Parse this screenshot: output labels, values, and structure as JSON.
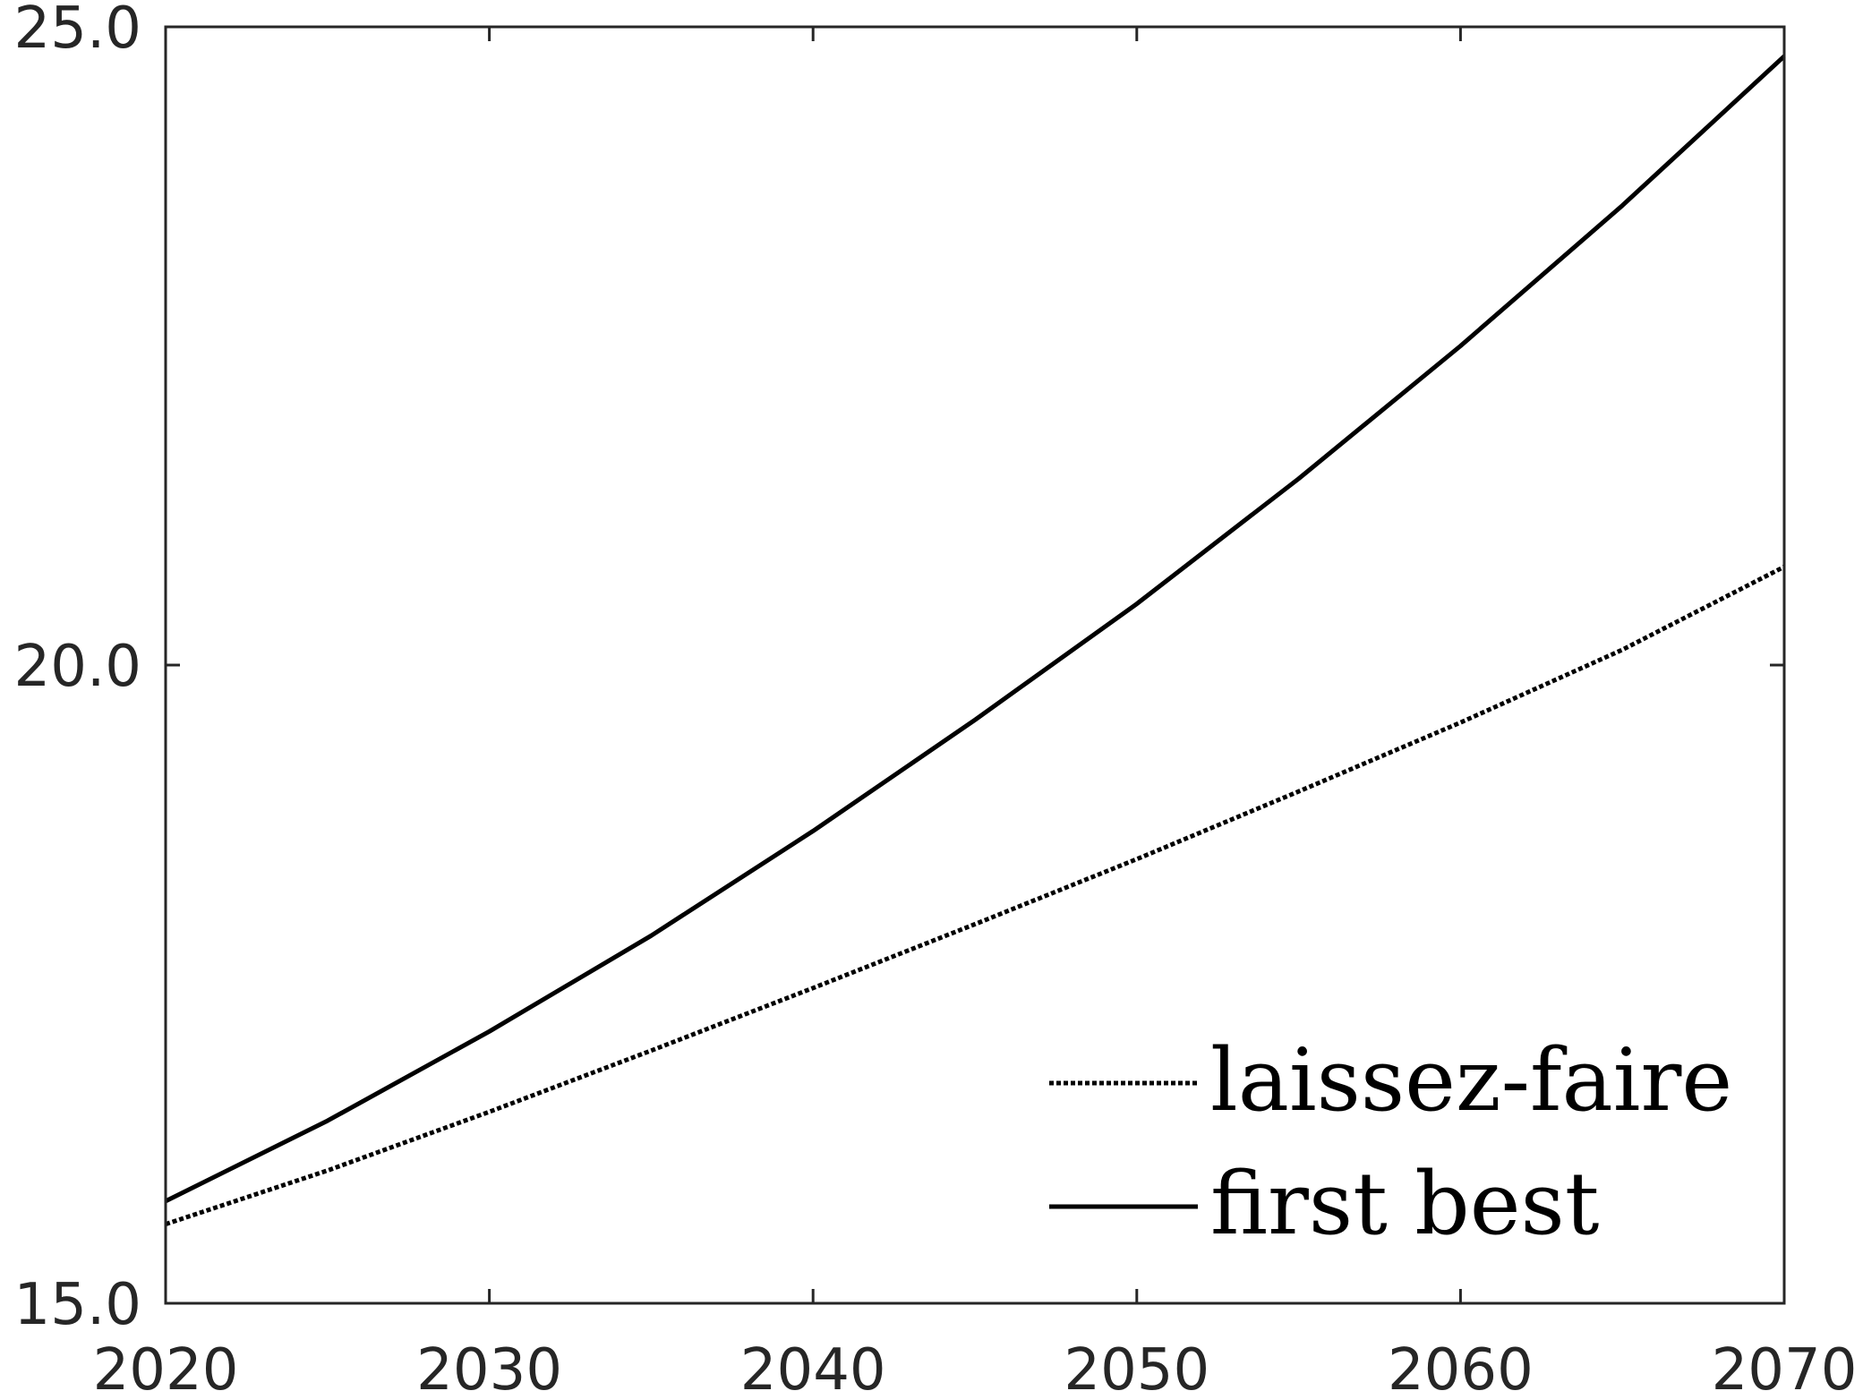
{
  "chart_data": {
    "type": "line",
    "title": "",
    "xlabel": "",
    "ylabel": "",
    "xlim": [
      2020,
      2070
    ],
    "ylim": [
      15.0,
      25.0
    ],
    "xticks": [
      "2020",
      "2030",
      "2040",
      "2050",
      "2060",
      "2070"
    ],
    "yticks": [
      "15.0",
      "20.0",
      "25.0"
    ],
    "grid": false,
    "legend_position": "bottom-right",
    "x": [
      2020,
      2025,
      2030,
      2035,
      2040,
      2045,
      2050,
      2055,
      2060,
      2065,
      2070
    ],
    "series": [
      {
        "name": "laissez-faire",
        "style": "dotted",
        "color": "#000000",
        "values": [
          15.62,
          16.04,
          16.5,
          16.98,
          17.47,
          17.97,
          18.48,
          19.01,
          19.55,
          20.12,
          20.77
        ]
      },
      {
        "name": "first best",
        "style": "solid",
        "color": "#000000",
        "values": [
          15.8,
          16.43,
          17.13,
          17.88,
          18.7,
          19.57,
          20.48,
          21.46,
          22.5,
          23.6,
          24.77
        ]
      }
    ]
  }
}
